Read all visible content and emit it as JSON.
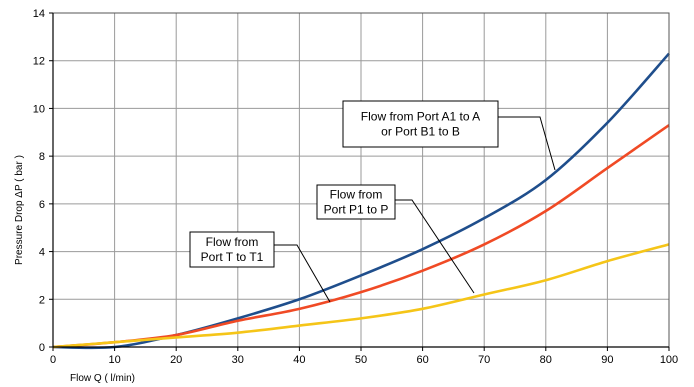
{
  "chart_data": {
    "type": "line",
    "xlabel": "Flow  Q ( l/min)",
    "ylabel": "Pressure Drop  ΔP ( bar )",
    "xlim": [
      0,
      100
    ],
    "ylim": [
      0,
      14
    ],
    "x_ticks": [
      0,
      10,
      20,
      30,
      40,
      50,
      60,
      70,
      80,
      90,
      100
    ],
    "y_ticks": [
      0,
      2,
      4,
      6,
      8,
      10,
      12,
      14
    ],
    "grid": true,
    "series": [
      {
        "name": "Flow from Port A1 to A or Port B1 to B",
        "color": "#1f4e8c",
        "x": [
          0,
          10,
          20,
          30,
          40,
          50,
          60,
          70,
          80,
          90,
          100
        ],
        "y": [
          0,
          0,
          0.5,
          1.2,
          2.0,
          3.0,
          4.1,
          5.4,
          7.0,
          9.4,
          12.3
        ]
      },
      {
        "name": "Flow from Port P1 to P",
        "color": "#f04a25",
        "x": [
          0,
          10,
          20,
          30,
          40,
          50,
          60,
          70,
          80,
          90,
          100
        ],
        "y": [
          0,
          0.2,
          0.5,
          1.1,
          1.6,
          2.3,
          3.2,
          4.3,
          5.7,
          7.5,
          9.3
        ]
      },
      {
        "name": "Flow from Port T to T1",
        "color": "#f5c518",
        "x": [
          0,
          10,
          20,
          30,
          40,
          50,
          60,
          70,
          80,
          90,
          100
        ],
        "y": [
          0,
          0.2,
          0.4,
          0.6,
          0.9,
          1.2,
          1.6,
          2.2,
          2.8,
          3.6,
          4.3
        ]
      }
    ],
    "annotations": [
      {
        "lines": [
          "Flow from Port A1 to A",
          "or Port B1 to B"
        ]
      },
      {
        "lines": [
          "Flow from",
          "Port P1 to P"
        ]
      },
      {
        "lines": [
          "Flow from",
          "Port T to T1"
        ]
      }
    ]
  }
}
